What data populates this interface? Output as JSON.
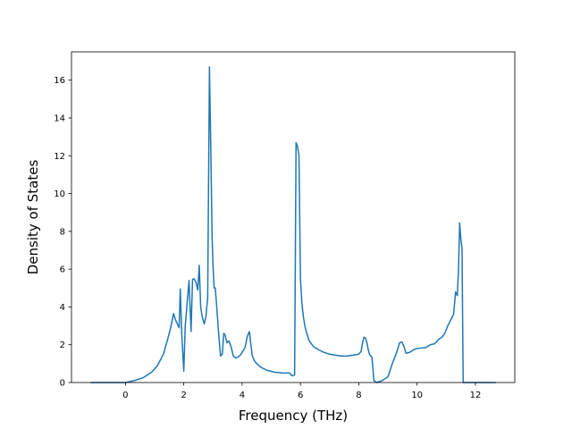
{
  "chart_data": {
    "type": "line",
    "title": "",
    "xlabel": "Frequency (THz)",
    "ylabel": "Density of States",
    "xlim": [
      -1.85,
      13.35
    ],
    "ylim": [
      0,
      17.5
    ],
    "xticks": [
      0,
      2,
      4,
      6,
      8,
      10,
      12
    ],
    "xtick_labels": [
      "0",
      "2",
      "4",
      "6",
      "8",
      "10",
      "12"
    ],
    "yticks": [
      0,
      2,
      4,
      6,
      8,
      10,
      12,
      14,
      16
    ],
    "ytick_labels": [
      "0",
      "2",
      "4",
      "6",
      "8",
      "10",
      "12",
      "14",
      "16"
    ],
    "grid": false,
    "series": [
      {
        "color": "#1f77b4",
        "x": [
          -1.2,
          0.0,
          0.3,
          0.6,
          0.9,
          1.1,
          1.3,
          1.45,
          1.55,
          1.65,
          1.72,
          1.78,
          1.84,
          1.88,
          1.93,
          2.0,
          2.05,
          2.12,
          2.18,
          2.25,
          2.3,
          2.35,
          2.42,
          2.48,
          2.53,
          2.58,
          2.63,
          2.7,
          2.76,
          2.82,
          2.88,
          2.93,
          2.97,
          3.0,
          3.04,
          3.08,
          3.13,
          3.2,
          3.26,
          3.32,
          3.37,
          3.42,
          3.48,
          3.55,
          3.62,
          3.7,
          3.78,
          3.86,
          3.94,
          4.02,
          4.1,
          4.18,
          4.25,
          4.3,
          4.35,
          4.42,
          4.5,
          4.65,
          4.85,
          5.1,
          5.4,
          5.62,
          5.72,
          5.8,
          5.85,
          5.9,
          5.95,
          6.0,
          6.05,
          6.1,
          6.15,
          6.2,
          6.3,
          6.45,
          6.6,
          6.8,
          7.0,
          7.2,
          7.4,
          7.6,
          7.8,
          8.0,
          8.08,
          8.13,
          8.18,
          8.23,
          8.28,
          8.33,
          8.38,
          8.45,
          8.52,
          8.57,
          8.62,
          8.8,
          9.0,
          9.15,
          9.3,
          9.4,
          9.48,
          9.55,
          9.62,
          9.75,
          9.9,
          10.0,
          10.3,
          10.45,
          10.6,
          10.75,
          10.85,
          10.95,
          11.05,
          11.15,
          11.25,
          11.32,
          11.38,
          11.42,
          11.46,
          11.5,
          11.54,
          11.58,
          11.62,
          11.68,
          12.0,
          12.7
        ],
        "y": [
          0.0,
          0.0,
          0.1,
          0.25,
          0.55,
          0.9,
          1.5,
          2.3,
          2.9,
          3.65,
          3.3,
          3.1,
          2.9,
          4.95,
          2.6,
          0.6,
          3.0,
          4.3,
          5.4,
          2.7,
          5.45,
          5.5,
          5.3,
          4.9,
          6.2,
          4.0,
          3.5,
          3.1,
          3.5,
          4.5,
          16.7,
          12.0,
          7.8,
          6.3,
          5.0,
          5.0,
          4.0,
          2.5,
          1.4,
          1.5,
          2.6,
          2.5,
          2.1,
          2.2,
          1.9,
          1.4,
          1.3,
          1.35,
          1.45,
          1.65,
          1.85,
          2.45,
          2.7,
          2.0,
          1.4,
          1.15,
          1.0,
          0.8,
          0.65,
          0.55,
          0.5,
          0.5,
          0.35,
          0.4,
          12.7,
          12.5,
          12.0,
          5.5,
          4.2,
          3.5,
          3.0,
          2.7,
          2.2,
          1.9,
          1.75,
          1.6,
          1.5,
          1.45,
          1.4,
          1.4,
          1.45,
          1.5,
          1.65,
          2.1,
          2.4,
          2.35,
          2.1,
          1.7,
          1.45,
          1.35,
          0.1,
          0.05,
          0.0,
          0.1,
          0.3,
          1.0,
          1.6,
          2.1,
          2.15,
          1.9,
          1.55,
          1.6,
          1.75,
          1.8,
          1.85,
          2.0,
          2.05,
          2.3,
          2.4,
          2.6,
          3.0,
          3.3,
          3.6,
          4.8,
          4.6,
          6.0,
          8.45,
          7.6,
          7.1,
          0.0,
          0.0,
          0.0,
          0.0,
          0.0
        ]
      }
    ]
  }
}
